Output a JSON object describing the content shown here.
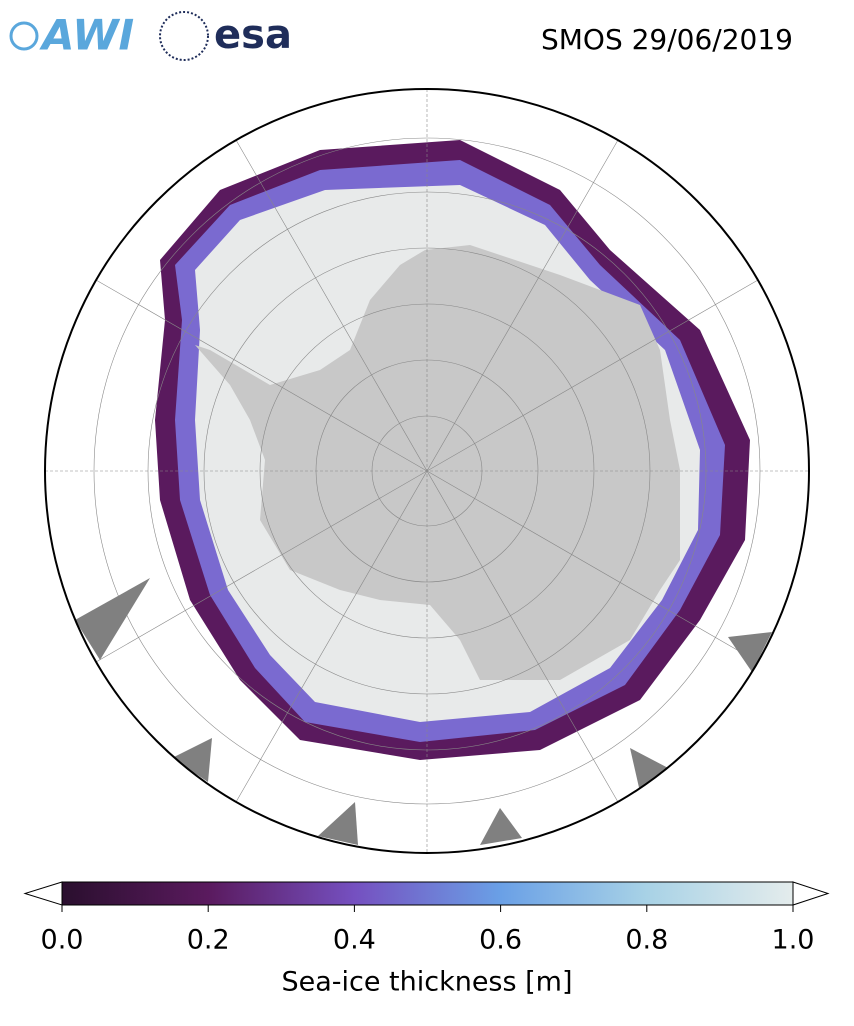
{
  "header": {
    "logos": [
      "AWI",
      "esa"
    ],
    "title": "SMOS 29/06/2019"
  },
  "colorbar": {
    "label": "Sea-ice thickness [m]",
    "range": [
      0,
      1
    ],
    "ticks": [
      {
        "value": 0,
        "label": "0.0"
      },
      {
        "value": 0.2,
        "label": "0.2"
      },
      {
        "value": 0.4,
        "label": "0.4"
      },
      {
        "value": 0.6,
        "label": "0.6"
      },
      {
        "value": 0.8,
        "label": "0.8"
      },
      {
        "value": 1,
        "label": "1.0"
      }
    ],
    "colors": [
      "#2a0f2e",
      "#5a1a5e",
      "#7550c0",
      "#6aa0e6",
      "#a8d2e6",
      "#e4ecec"
    ]
  }
}
